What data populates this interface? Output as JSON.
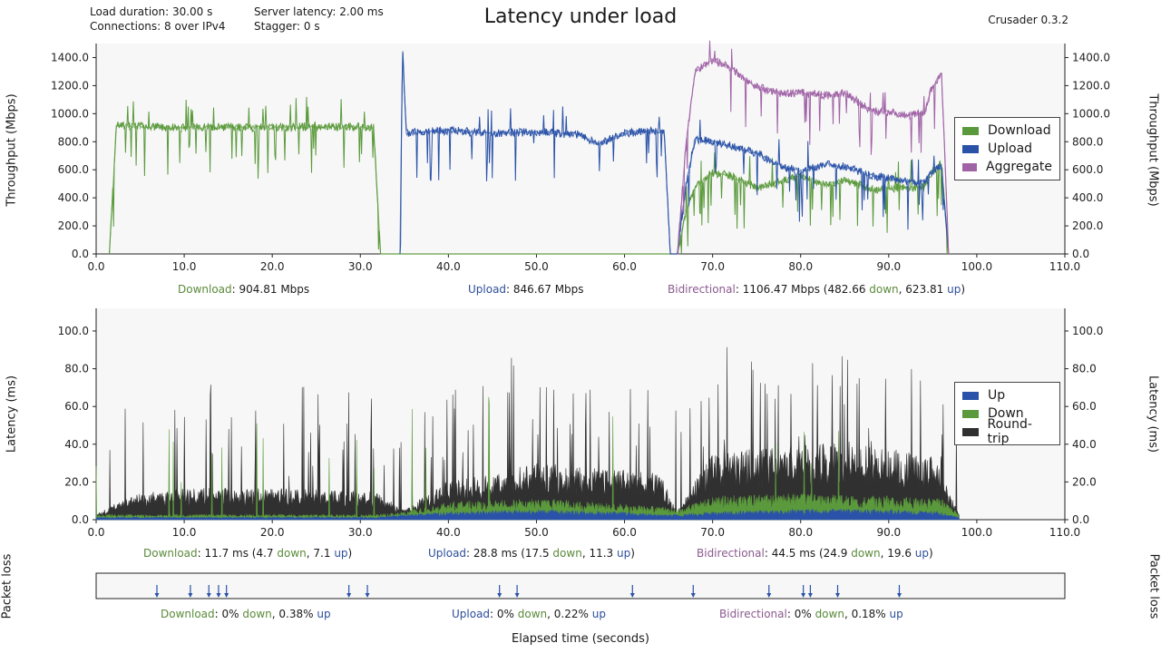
{
  "header": {
    "load_duration": "Load duration: 30.00 s",
    "connections": "Connections: 8 over IPv4",
    "server_latency": "Server latency: 2.00 ms",
    "stagger": "Stagger: 0 s",
    "title": "Latency under load",
    "version": "Crusader 0.3.2"
  },
  "colors": {
    "download": "#5b9a3c",
    "upload": "#2a52a8",
    "aggregate": "#a063a6",
    "roundtrip": "#303030",
    "plot_bg": "#f7f7f7"
  },
  "chart_data": [
    {
      "type": "line",
      "name": "throughput",
      "ylabel": "Throughput (Mbps)",
      "xlim": [
        0,
        110
      ],
      "ylim": [
        0,
        1500
      ],
      "x_ticks": [
        "0.0",
        "10.0",
        "20.0",
        "30.0",
        "40.0",
        "50.0",
        "60.0",
        "70.0",
        "80.0",
        "90.0",
        "100.0",
        "110.0"
      ],
      "y_ticks": [
        "0.0",
        "200.0",
        "400.0",
        "600.0",
        "800.0",
        "1000.0",
        "1200.0",
        "1400.0"
      ],
      "series": [
        {
          "name": "Download",
          "x": [
            1.5,
            2.3,
            5,
            10,
            15,
            20,
            25,
            30,
            31.5,
            32.3,
            66,
            67,
            68,
            70,
            72,
            75,
            78,
            80,
            83,
            85,
            88,
            90,
            92,
            94,
            95,
            96,
            96.8
          ],
          "y": [
            0,
            920,
            910,
            900,
            905,
            900,
            910,
            905,
            900,
            0,
            0,
            300,
            480,
            580,
            560,
            470,
            520,
            560,
            490,
            530,
            460,
            470,
            470,
            480,
            600,
            640,
            0
          ]
        },
        {
          "name": "Upload",
          "x": [
            34.5,
            34.8,
            35.2,
            40,
            45,
            50,
            55,
            57,
            60,
            63,
            64.5,
            65.2,
            66,
            67,
            68,
            70,
            72,
            75,
            78,
            80,
            83,
            85,
            88,
            90,
            92,
            94,
            95,
            96,
            96.8
          ],
          "y": [
            0,
            1480,
            860,
            880,
            860,
            870,
            850,
            780,
            860,
            880,
            870,
            0,
            0,
            500,
            820,
            800,
            770,
            720,
            620,
            590,
            640,
            620,
            560,
            540,
            520,
            510,
            600,
            620,
            0
          ]
        },
        {
          "name": "Aggregate",
          "x": [
            66,
            67,
            68,
            70,
            72,
            75,
            78,
            80,
            83,
            85,
            88,
            90,
            92,
            94,
            95,
            96,
            96.8
          ],
          "y": [
            0,
            800,
            1300,
            1380,
            1330,
            1190,
            1140,
            1150,
            1130,
            1150,
            1020,
            1010,
            990,
            1000,
            1200,
            1290,
            0
          ]
        }
      ],
      "summaries": {
        "download": {
          "label": "Download",
          "value": ": 904.81 Mbps"
        },
        "upload": {
          "label": "Upload",
          "value": ": 846.67 Mbps"
        },
        "bidirectional": {
          "label": "Bidirectional",
          "value": ": 1106.47 Mbps (482.66 ",
          "down_word": "down",
          "mid": ", 623.81 ",
          "up_word": "up",
          "end": ")"
        }
      }
    },
    {
      "type": "area",
      "name": "latency",
      "ylabel": "Latency (ms)",
      "xlim": [
        0,
        110
      ],
      "ylim": [
        0,
        112
      ],
      "x_ticks": [
        "0.0",
        "10.0",
        "20.0",
        "30.0",
        "40.0",
        "50.0",
        "60.0",
        "70.0",
        "80.0",
        "90.0",
        "100.0",
        "110.0"
      ],
      "y_ticks": [
        "0.0",
        "20.0",
        "40.0",
        "60.0",
        "80.0",
        "100.0"
      ],
      "series": [
        {
          "name": "Up",
          "x": [
            0,
            2,
            32,
            35,
            40,
            50,
            60,
            64,
            66,
            70,
            80,
            90,
            96,
            98
          ],
          "y": [
            1,
            1,
            1,
            2,
            3,
            4,
            3,
            2,
            2,
            3,
            4,
            4,
            3,
            1
          ]
        },
        {
          "name": "Down",
          "x": [
            0,
            2,
            32,
            35,
            40,
            50,
            60,
            64,
            66,
            70,
            80,
            90,
            96,
            98
          ],
          "y": [
            2,
            2,
            2,
            3,
            7,
            8,
            6,
            5,
            4,
            9,
            10,
            9,
            8,
            2
          ]
        },
        {
          "name": "Round-trip",
          "x": [
            0,
            2,
            5,
            10,
            20,
            30,
            32,
            35,
            40,
            45,
            50,
            55,
            60,
            64,
            66,
            70,
            75,
            80,
            85,
            90,
            95,
            96,
            98
          ],
          "y": [
            2,
            6,
            10,
            12,
            12,
            11,
            10,
            4,
            15,
            17,
            22,
            20,
            19,
            18,
            4,
            25,
            27,
            28,
            30,
            27,
            24,
            18,
            2
          ]
        }
      ],
      "summaries": {
        "download": {
          "label": "Download",
          "value": ": 11.7 ms (4.7 ",
          "down_word": "down",
          "mid": ", 7.1 ",
          "up_word": "up",
          "end": ")"
        },
        "upload": {
          "label": "Upload",
          "value": ": 28.8 ms (17.5 ",
          "down_word": "down",
          "mid": ", 11.3 ",
          "up_word": "up",
          "end": ")"
        },
        "bidirectional": {
          "label": "Bidirectional",
          "value": ": 44.5 ms (24.9 ",
          "down_word": "down",
          "mid": ", 19.6 ",
          "up_word": "up",
          "end": ")"
        }
      }
    },
    {
      "type": "scatter",
      "name": "packet-loss",
      "ylabel": "Packet loss",
      "xlim": [
        0,
        110
      ],
      "loss_events_x": [
        6.9,
        10.7,
        12.8,
        13.9,
        14.8,
        28.7,
        30.8,
        45.8,
        47.8,
        60.9,
        67.8,
        76.4,
        80.3,
        81.1,
        84.2,
        91.2
      ],
      "summaries": {
        "download": {
          "label": "Download",
          "value": ": 0% ",
          "down_word": "down",
          "mid": ", 0.38% ",
          "up_word": "up",
          "end": ""
        },
        "upload": {
          "label": "Upload",
          "value": ": 0% ",
          "down_word": "down",
          "mid": ", 0.22% ",
          "up_word": "up",
          "end": ""
        },
        "bidirectional": {
          "label": "Bidirectional",
          "value": ": 0% ",
          "down_word": "down",
          "mid": ", 0.18% ",
          "up_word": "up",
          "end": ""
        }
      }
    }
  ],
  "xlabel": "Elapsed time (seconds)",
  "legend_throughput": [
    "Download",
    "Upload",
    "Aggregate"
  ],
  "legend_latency": [
    "Up",
    "Down",
    "Round-trip"
  ]
}
